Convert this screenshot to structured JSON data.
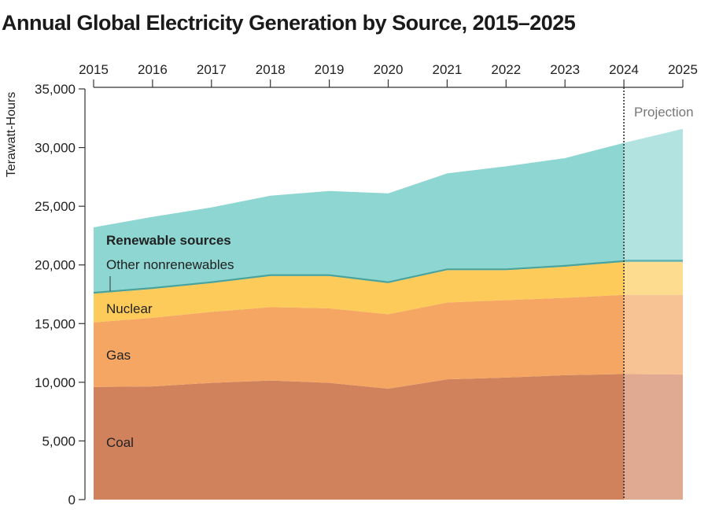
{
  "chart_data": {
    "type": "area",
    "stacked": true,
    "title": "Annual Global Electricity Generation by Source, 2015–2025",
    "ylabel": "Terawatt-Hours",
    "xlabel": "",
    "x": [
      2015,
      2016,
      2017,
      2018,
      2019,
      2020,
      2021,
      2022,
      2023,
      2024,
      2025
    ],
    "ylim": [
      0,
      35000
    ],
    "yticks": [
      "0",
      "5,000",
      "10,000",
      "15,000",
      "20,000",
      "25,000",
      "30,000",
      "35,000"
    ],
    "xticks": [
      "2015",
      "2016",
      "2017",
      "2018",
      "2019",
      "2020",
      "2021",
      "2022",
      "2023",
      "2024",
      "2025"
    ],
    "x_axis_position": "top",
    "grid": false,
    "projection": {
      "label": "Projection",
      "from": 2024,
      "to": 2025
    },
    "series": [
      {
        "name": "Coal",
        "color": "#d0825d",
        "values": [
          9600,
          9650,
          9950,
          10150,
          9950,
          9450,
          10250,
          10400,
          10600,
          10700,
          10650
        ]
      },
      {
        "name": "Gas",
        "color": "#f5a662",
        "values": [
          5500,
          5850,
          6050,
          6250,
          6350,
          6350,
          6550,
          6600,
          6600,
          6750,
          6800
        ]
      },
      {
        "name": "Nuclear",
        "color": "#fccb5a",
        "values": [
          2450,
          2450,
          2450,
          2650,
          2750,
          2650,
          2750,
          2550,
          2650,
          2800,
          2800
        ]
      },
      {
        "name": "Other nonrenewables",
        "color": "#4aa39b",
        "values": [
          150,
          150,
          150,
          150,
          150,
          150,
          150,
          150,
          150,
          150,
          150
        ]
      },
      {
        "name": "Renewable sources",
        "color": "#8dd6d1",
        "values": [
          5500,
          6000,
          6300,
          6700,
          7100,
          7500,
          8100,
          8700,
          9100,
          10000,
          11200
        ]
      }
    ]
  }
}
